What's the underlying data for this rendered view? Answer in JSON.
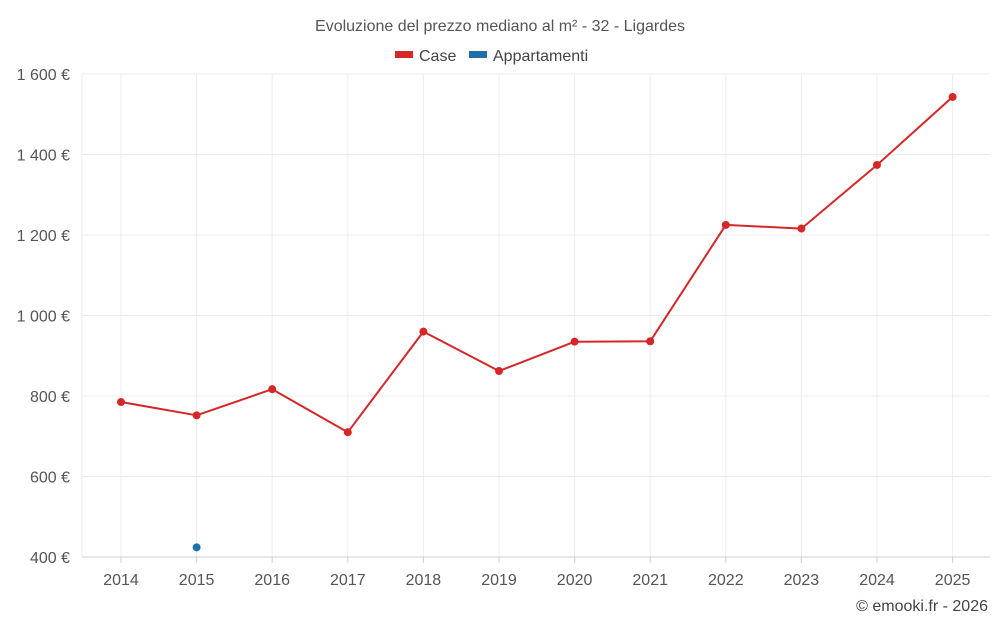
{
  "chart_data": {
    "type": "line",
    "title": "Evoluzione del prezzo mediano al m² - 32 - Ligardes",
    "categories": [
      "2014",
      "2015",
      "2016",
      "2017",
      "2018",
      "2019",
      "2020",
      "2021",
      "2022",
      "2023",
      "2024",
      "2025"
    ],
    "ylim": [
      400,
      1600
    ],
    "yticks": [
      400,
      600,
      800,
      1000,
      1200,
      1400,
      1600
    ],
    "ytick_labels": [
      "400 €",
      "600 €",
      "800 €",
      "1 000 €",
      "1 200 €",
      "1 400 €",
      "1 600 €"
    ],
    "grid": true,
    "legend_position": "top-center",
    "series": [
      {
        "name": "Case",
        "color": "#d62728",
        "values": [
          785,
          752,
          817,
          710,
          960,
          862,
          935,
          936,
          1225,
          1216,
          1374,
          1543
        ]
      },
      {
        "name": "Appartamenti",
        "color": "#1f6fa8",
        "values": [
          null,
          424,
          null,
          null,
          null,
          null,
          null,
          null,
          null,
          null,
          null,
          null
        ]
      }
    ]
  },
  "credit": "© emooki.fr - 2026"
}
